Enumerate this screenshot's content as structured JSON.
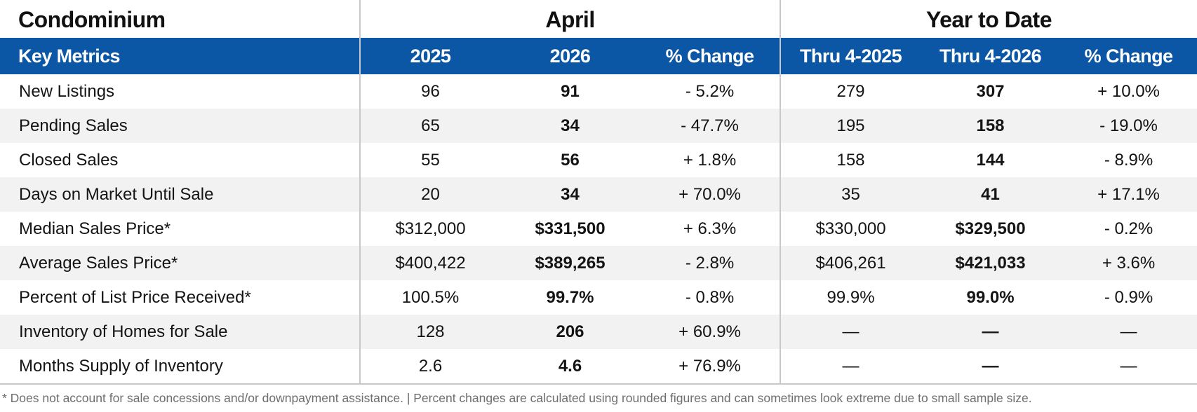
{
  "section_title": "Condominium",
  "groups": {
    "april": "April",
    "ytd": "Year to Date"
  },
  "columns": {
    "metric": "Key Metrics",
    "april_prev": "2025",
    "april_curr": "2026",
    "april_change": "% Change",
    "ytd_prev": "Thru 4-2025",
    "ytd_curr": "Thru 4-2026",
    "ytd_change": "% Change"
  },
  "rows": [
    {
      "metric": "New Listings",
      "april_prev": "96",
      "april_curr": "91",
      "april_change": "- 5.2%",
      "ytd_prev": "279",
      "ytd_curr": "307",
      "ytd_change": "+ 10.0%"
    },
    {
      "metric": "Pending Sales",
      "april_prev": "65",
      "april_curr": "34",
      "april_change": "- 47.7%",
      "ytd_prev": "195",
      "ytd_curr": "158",
      "ytd_change": "- 19.0%"
    },
    {
      "metric": "Closed Sales",
      "april_prev": "55",
      "april_curr": "56",
      "april_change": "+ 1.8%",
      "ytd_prev": "158",
      "ytd_curr": "144",
      "ytd_change": "- 8.9%"
    },
    {
      "metric": "Days on Market Until Sale",
      "april_prev": "20",
      "april_curr": "34",
      "april_change": "+ 70.0%",
      "ytd_prev": "35",
      "ytd_curr": "41",
      "ytd_change": "+ 17.1%"
    },
    {
      "metric": "Median Sales Price*",
      "april_prev": "$312,000",
      "april_curr": "$331,500",
      "april_change": "+ 6.3%",
      "ytd_prev": "$330,000",
      "ytd_curr": "$329,500",
      "ytd_change": "- 0.2%"
    },
    {
      "metric": "Average Sales Price*",
      "april_prev": "$400,422",
      "april_curr": "$389,265",
      "april_change": "- 2.8%",
      "ytd_prev": "$406,261",
      "ytd_curr": "$421,033",
      "ytd_change": "+ 3.6%"
    },
    {
      "metric": "Percent of List Price Received*",
      "april_prev": "100.5%",
      "april_curr": "99.7%",
      "april_change": "- 0.8%",
      "ytd_prev": "99.9%",
      "ytd_curr": "99.0%",
      "ytd_change": "- 0.9%"
    },
    {
      "metric": "Inventory of Homes for Sale",
      "april_prev": "128",
      "april_curr": "206",
      "april_change": "+ 60.9%",
      "ytd_prev": "—",
      "ytd_curr": "—",
      "ytd_change": "—"
    },
    {
      "metric": "Months Supply of Inventory",
      "april_prev": "2.6",
      "april_curr": "4.6",
      "april_change": "+ 76.9%",
      "ytd_prev": "—",
      "ytd_curr": "—",
      "ytd_change": "—"
    }
  ],
  "footnote": "* Does not account for sale concessions and/or downpayment assistance. | Percent changes are calculated using rounded figures and can sometimes look extreme due to small sample size.",
  "colors": {
    "header_blue": "#0c56a6",
    "stripe": "#f2f2f2",
    "divider": "#c8c8c8"
  }
}
